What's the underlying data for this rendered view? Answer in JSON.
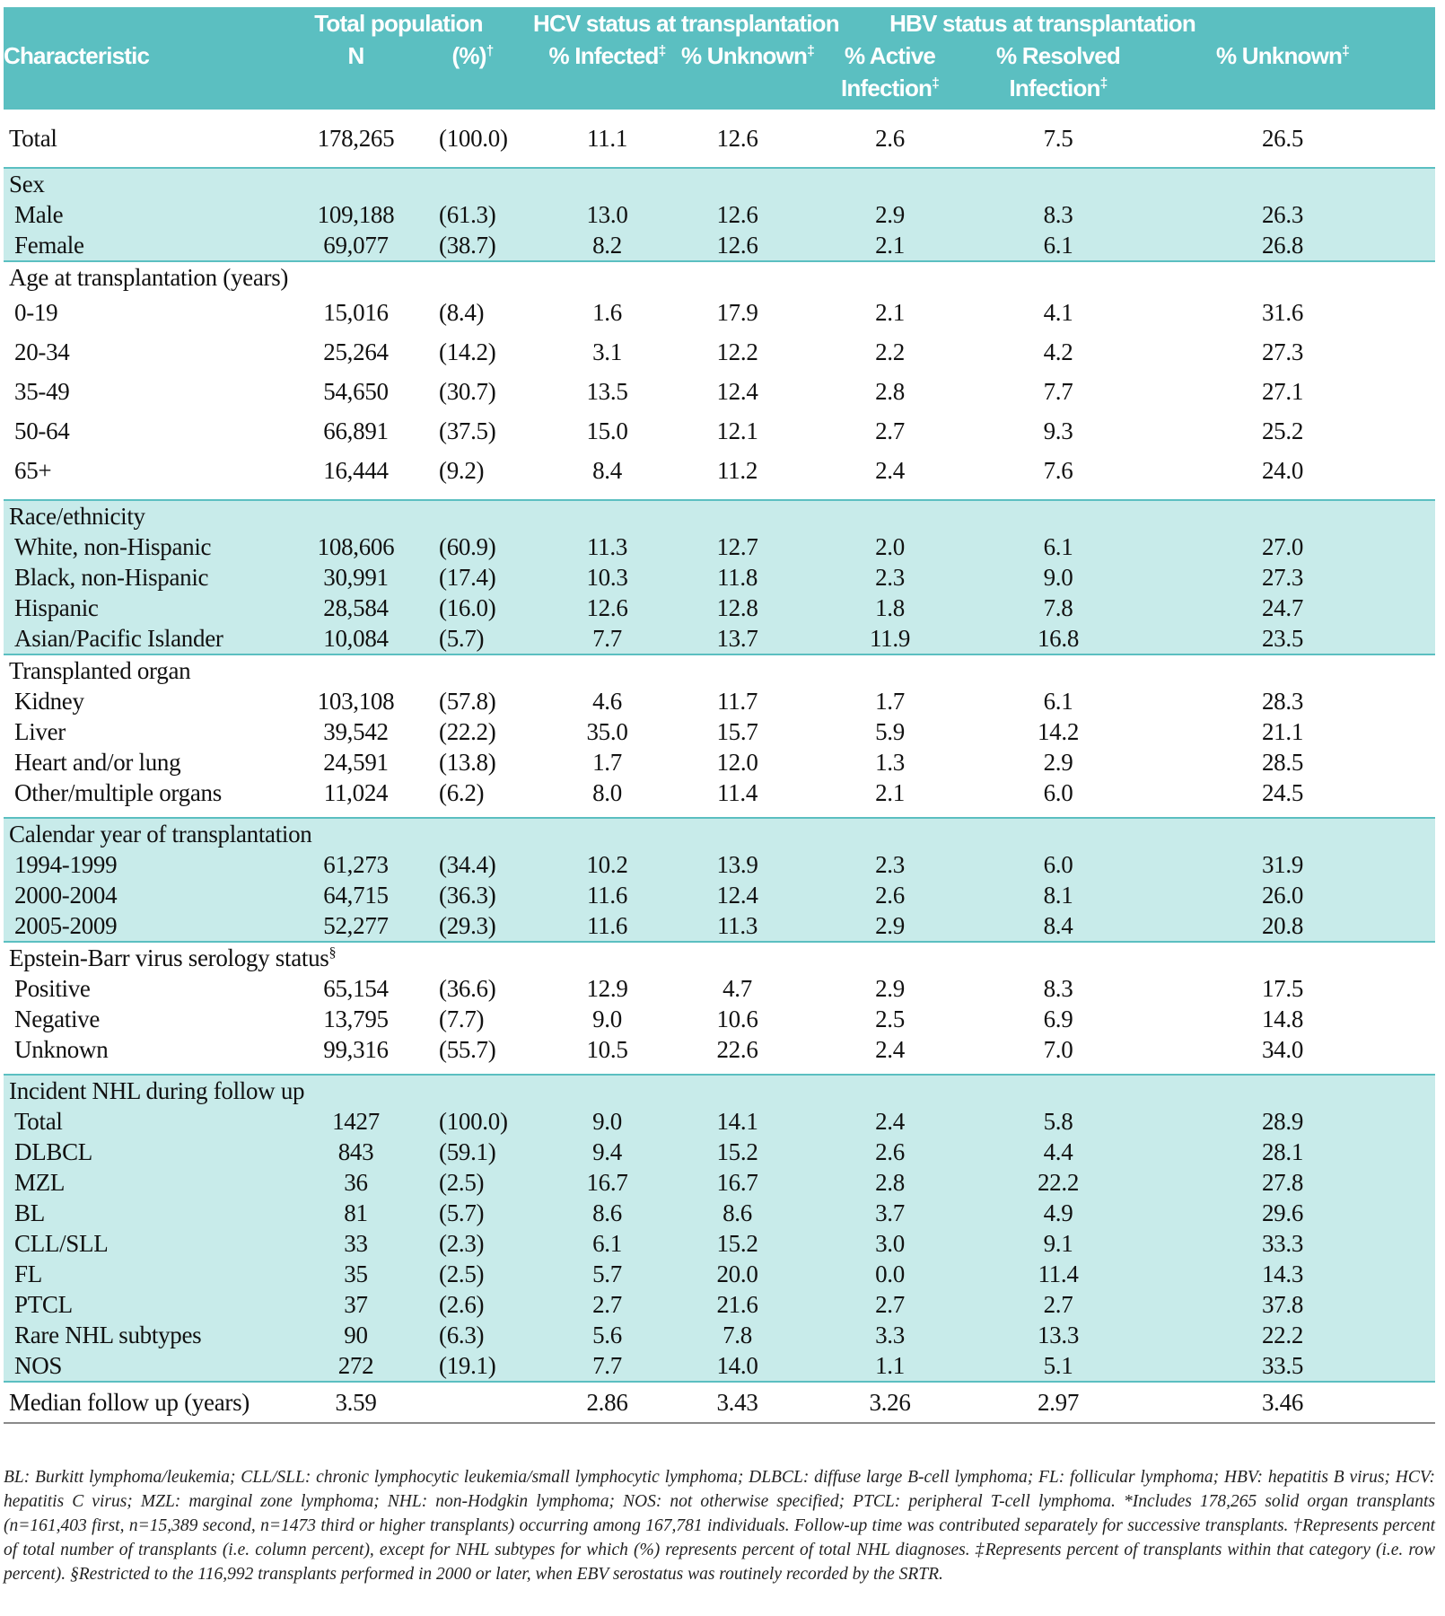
{
  "header": {
    "characteristic": "Characteristic",
    "total_population": "Total population",
    "n": "N",
    "pct": "(%)",
    "pct_mark": "†",
    "hcv_group": "HCV status at transplantation",
    "hcv_infected": "% Infected",
    "hcv_unknown": "% Unknown",
    "hbv_group": "HBV status at transplantation",
    "hbv_active_1": "% Active",
    "hbv_active_2": "Infection",
    "hbv_resolved_1": "% Resolved",
    "hbv_resolved_2": "Infection",
    "hbv_unknown": "% Unknown",
    "dagger2": "‡"
  },
  "rows": {
    "total": [
      "Total",
      "178,265",
      "(100.0)",
      "11.1",
      "12.6",
      "2.6",
      "7.5",
      "26.5"
    ],
    "sex_title": "Sex",
    "sex": [
      [
        "Male",
        "109,188",
        "(61.3)",
        "13.0",
        "12.6",
        "2.9",
        "8.3",
        "26.3"
      ],
      [
        "Female",
        "69,077",
        "(38.7)",
        "8.2",
        "12.6",
        "2.1",
        "6.1",
        "26.8"
      ]
    ],
    "age_title": "Age at transplantation (years)",
    "age": [
      [
        "0-19",
        "15,016",
        "(8.4)",
        "1.6",
        "17.9",
        "2.1",
        "4.1",
        "31.6"
      ],
      [
        "20-34",
        "25,264",
        "(14.2)",
        "3.1",
        "12.2",
        "2.2",
        "4.2",
        "27.3"
      ],
      [
        "35-49",
        "54,650",
        "(30.7)",
        "13.5",
        "12.4",
        "2.8",
        "7.7",
        "27.1"
      ],
      [
        "50-64",
        "66,891",
        "(37.5)",
        "15.0",
        "12.1",
        "2.7",
        "9.3",
        "25.2"
      ],
      [
        "65+",
        "16,444",
        "(9.2)",
        "8.4",
        "11.2",
        "2.4",
        "7.6",
        "24.0"
      ]
    ],
    "race_title": "Race/ethnicity",
    "race": [
      [
        "White, non-Hispanic",
        "108,606",
        "(60.9)",
        "11.3",
        "12.7",
        "2.0",
        "6.1",
        "27.0"
      ],
      [
        "Black, non-Hispanic",
        "30,991",
        "(17.4)",
        "10.3",
        "11.8",
        "2.3",
        "9.0",
        "27.3"
      ],
      [
        "Hispanic",
        "28,584",
        "(16.0)",
        "12.6",
        "12.8",
        "1.8",
        "7.8",
        "24.7"
      ],
      [
        "Asian/Pacific Islander",
        "10,084",
        "(5.7)",
        "7.7",
        "13.7",
        "11.9",
        "16.8",
        "23.5"
      ]
    ],
    "organ_title": "Transplanted organ",
    "organ": [
      [
        "Kidney",
        "103,108",
        "(57.8)",
        "4.6",
        "11.7",
        "1.7",
        "6.1",
        "28.3"
      ],
      [
        "Liver",
        "39,542",
        "(22.2)",
        "35.0",
        "15.7",
        "5.9",
        "14.2",
        "21.1"
      ],
      [
        "Heart and/or lung",
        "24,591",
        "(13.8)",
        "1.7",
        "12.0",
        "1.3",
        "2.9",
        "28.5"
      ],
      [
        "Other/multiple organs",
        "11,024",
        "(6.2)",
        "8.0",
        "11.4",
        "2.1",
        "6.0",
        "24.5"
      ]
    ],
    "year_title": "Calendar year of transplantation",
    "year": [
      [
        "1994-1999",
        "61,273",
        "(34.4)",
        "10.2",
        "13.9",
        "2.3",
        "6.0",
        "31.9"
      ],
      [
        "2000-2004",
        "64,715",
        "(36.3)",
        "11.6",
        "12.4",
        "2.6",
        "8.1",
        "26.0"
      ],
      [
        "2005-2009",
        "52,277",
        "(29.3)",
        "11.6",
        "11.3",
        "2.9",
        "8.4",
        "20.8"
      ]
    ],
    "ebv_title": "Epstein-Barr virus serology status",
    "ebv_mark": "§",
    "ebv": [
      [
        "Positive",
        "65,154",
        "(36.6)",
        "12.9",
        "4.7",
        "2.9",
        "8.3",
        "17.5"
      ],
      [
        "Negative",
        "13,795",
        "(7.7)",
        "9.0",
        "10.6",
        "2.5",
        "6.9",
        "14.8"
      ],
      [
        "Unknown",
        "99,316",
        "(55.7)",
        "10.5",
        "22.6",
        "2.4",
        "7.0",
        "34.0"
      ]
    ],
    "nhl_title": "Incident NHL during follow up",
    "nhl": [
      [
        "Total",
        "1427",
        "(100.0)",
        "9.0",
        "14.1",
        "2.4",
        "5.8",
        "28.9"
      ],
      [
        "DLBCL",
        "843",
        "(59.1)",
        "9.4",
        "15.2",
        "2.6",
        "4.4",
        "28.1"
      ],
      [
        "MZL",
        "36",
        "(2.5)",
        "16.7",
        "16.7",
        "2.8",
        "22.2",
        "27.8"
      ],
      [
        "BL",
        "81",
        "(5.7)",
        "8.6",
        "8.6",
        "3.7",
        "4.9",
        "29.6"
      ],
      [
        "CLL/SLL",
        "33",
        "(2.3)",
        "6.1",
        "15.2",
        "3.0",
        "9.1",
        "33.3"
      ],
      [
        "FL",
        "35",
        "(2.5)",
        "5.7",
        "20.0",
        "0.0",
        "11.4",
        "14.3"
      ],
      [
        "PTCL",
        "37",
        "(2.6)",
        "2.7",
        "21.6",
        "2.7",
        "2.7",
        "37.8"
      ],
      [
        "Rare NHL subtypes",
        "90",
        "(6.3)",
        "5.6",
        "7.8",
        "3.3",
        "13.3",
        "22.2"
      ],
      [
        "NOS",
        "272",
        "(19.1)",
        "7.7",
        "14.0",
        "1.1",
        "5.1",
        "33.5"
      ]
    ],
    "median": [
      "Median follow up (years)",
      "3.59",
      "",
      "2.86",
      "3.43",
      "3.26",
      "2.97",
      "3.46"
    ]
  },
  "footnotes": {
    "abbrev": "BL: Burkitt lymphoma/leukemia; CLL/SLL: chronic lymphocytic leukemia/small lymphocytic lymphoma; DLBCL: diffuse large B-cell lymphoma; FL: follicular lymphoma; HBV: hepatitis B virus; HCV: hepatitis C virus; MZL: marginal zone lymphoma; NHL: non-Hodgkin lymphoma; NOS: not otherwise specified; PTCL: peripheral T-cell lymphoma.",
    "note_star": "*Includes 178,265 solid organ transplants (n=161,403 first, n=15,389 second, n=1473 third or higher transplants) occurring among 167,781 individuals. Follow-up time was contributed separately for successive transplants.",
    "note_dagger": "†Represents percent of total number of transplants (i.e. column percent), except for NHL subtypes for which (%) represents percent of total NHL diagnoses.",
    "note_ddagger": "‡Represents percent of transplants within that category (i.e. row percent).",
    "note_section": "§Restricted to the 116,992 transplants performed in 2000 or later, when EBV serostatus was routinely recorded by the SRTR."
  }
}
